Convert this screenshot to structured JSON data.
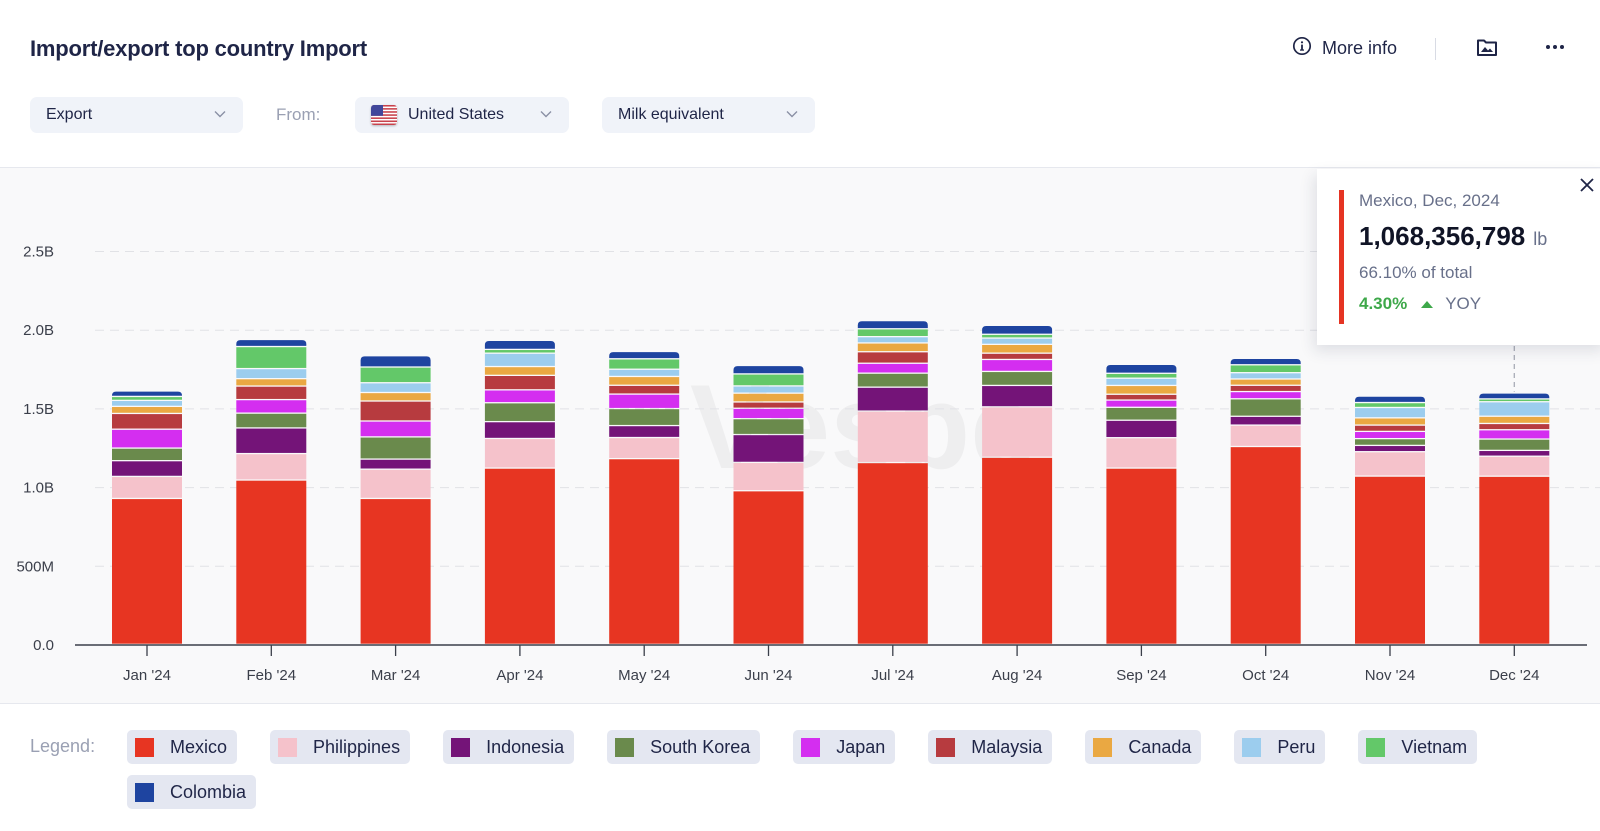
{
  "header": {
    "title": "Import/export top country Import",
    "more_info_label": "More info",
    "icons": [
      "info-circle-icon",
      "image-download-icon",
      "more-dots-icon"
    ]
  },
  "filters": {
    "flow": {
      "value": "Export"
    },
    "from_label": "From:",
    "country": {
      "value": "United States",
      "flag": "us-flag-icon"
    },
    "unit_mode": {
      "value": "Milk equivalent"
    }
  },
  "tooltip": {
    "title": "Mexico, Dec, 2024",
    "value": "1,068,356,798",
    "unit": "lb",
    "share": "66.10% of total",
    "yoy_value": "4.30%",
    "yoy_direction": "up",
    "yoy_label": "YOY",
    "accent_color": "#e53423"
  },
  "legend": {
    "label": "Legend:"
  },
  "chart_data": {
    "type": "bar",
    "stacked": true,
    "title": "Import/export top country Import",
    "xlabel": "",
    "ylabel": "",
    "unit": "lb",
    "ylim": [
      0,
      2500000000
    ],
    "yticks": [
      {
        "value": 0,
        "label": "0.0"
      },
      {
        "value": 500000000,
        "label": "500M"
      },
      {
        "value": 1000000000,
        "label": "1.0B"
      },
      {
        "value": 1500000000,
        "label": "1.5B"
      },
      {
        "value": 2000000000,
        "label": "2.0B"
      },
      {
        "value": 2500000000,
        "label": "2.5B"
      }
    ],
    "grid": true,
    "legend_position": "bottom",
    "highlighted": {
      "series": "Mexico",
      "category": "Dec '24"
    },
    "categories": [
      "Jan '24",
      "Feb '24",
      "Mar '24",
      "Apr '24",
      "May '24",
      "Jun '24",
      "Jul '24",
      "Aug '24",
      "Sep '24",
      "Oct '24",
      "Nov '24",
      "Dec '24"
    ],
    "series": [
      {
        "name": "Mexico",
        "color": "#e73522",
        "values": [
          927000000,
          1044000000,
          927000000,
          1120000000,
          1180000000,
          976000000,
          1155000000,
          1189000000,
          1120000000,
          1257000000,
          1069000000,
          1068356798
        ]
      },
      {
        "name": "Philippines",
        "color": "#f5c2cb",
        "values": [
          140000000,
          168000000,
          186000000,
          188000000,
          134000000,
          180000000,
          327000000,
          320000000,
          193000000,
          136000000,
          155000000,
          127000000
        ]
      },
      {
        "name": "Indonesia",
        "color": "#741478",
        "values": [
          100000000,
          163000000,
          64000000,
          107000000,
          76000000,
          177000000,
          152000000,
          136000000,
          111000000,
          56000000,
          40000000,
          37000000
        ]
      },
      {
        "name": "South Korea",
        "color": "#6a8a4c",
        "values": [
          80000000,
          94000000,
          141000000,
          120000000,
          108000000,
          101000000,
          89000000,
          89000000,
          82000000,
          111000000,
          43000000,
          72000000
        ]
      },
      {
        "name": "Japan",
        "color": "#d42ef0",
        "values": [
          120000000,
          86000000,
          101000000,
          82000000,
          92000000,
          66000000,
          63000000,
          76000000,
          46000000,
          46000000,
          46000000,
          59000000
        ]
      },
      {
        "name": "Malaysia",
        "color": "#b73b3f",
        "values": [
          100000000,
          86000000,
          127000000,
          92000000,
          56000000,
          40000000,
          73000000,
          40000000,
          37000000,
          40000000,
          40000000,
          40000000
        ]
      },
      {
        "name": "Canada",
        "color": "#eaa842",
        "values": [
          45000000,
          47000000,
          54000000,
          56000000,
          56000000,
          56000000,
          56000000,
          56000000,
          56000000,
          40000000,
          46000000,
          46000000
        ]
      },
      {
        "name": "Peru",
        "color": "#9ccdee",
        "values": [
          38000000,
          64000000,
          62000000,
          85000000,
          46000000,
          46000000,
          40000000,
          40000000,
          46000000,
          40000000,
          66000000,
          92000000
        ]
      },
      {
        "name": "Vietnam",
        "color": "#63c869",
        "values": [
          25000000,
          140000000,
          100000000,
          24000000,
          66000000,
          76000000,
          50000000,
          24000000,
          31000000,
          50000000,
          31000000,
          18000000
        ]
      },
      {
        "name": "Colombia",
        "color": "#1e44a0",
        "values": [
          35000000,
          45000000,
          72000000,
          57000000,
          47000000,
          54000000,
          52000000,
          57000000,
          57000000,
          41000000,
          41000000,
          38000000
        ]
      }
    ]
  }
}
